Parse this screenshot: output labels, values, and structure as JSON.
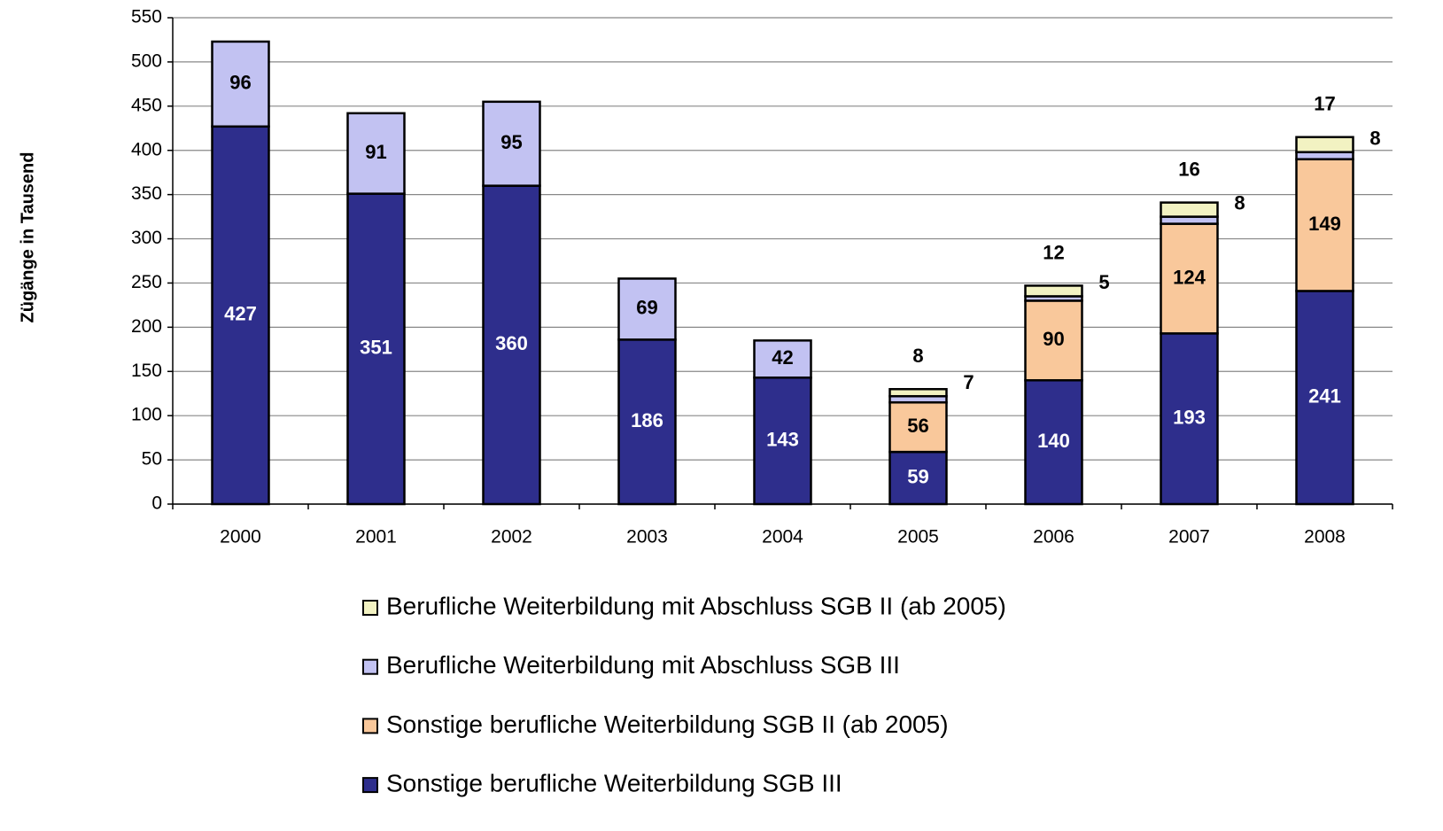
{
  "chart_data": {
    "type": "stacked_bar",
    "y_label": "Zügänge in Tausend",
    "categories": [
      "2000",
      "2001",
      "2002",
      "2003",
      "2004",
      "2005",
      "2006",
      "2007",
      "2008"
    ],
    "series": [
      {
        "name": "Sonstige berufliche Weiterbildung SGB III",
        "color": "#2e2e8c",
        "values": [
          427,
          351,
          360,
          186,
          143,
          59,
          140,
          193,
          241
        ]
      },
      {
        "name": "Sonstige berufliche Weiterbildung SGB II (ab 2005)",
        "color": "#f9c89b",
        "values": [
          null,
          null,
          null,
          null,
          null,
          56,
          90,
          124,
          149
        ]
      },
      {
        "name": "Berufliche Weiterbildung mit Abschluss SGB III",
        "color": "#c2c2f2",
        "values": [
          96,
          91,
          95,
          69,
          42,
          7,
          5,
          8,
          8
        ]
      },
      {
        "name": "Berufliche Weiterbildung mit Abschluss SGB II (ab 2005)",
        "color": "#f2f2c2",
        "values": [
          null,
          null,
          null,
          null,
          null,
          8,
          12,
          16,
          17
        ]
      }
    ],
    "ylim": [
      0,
      550
    ],
    "yticks": [
      0,
      50,
      100,
      150,
      200,
      250,
      300,
      350,
      400,
      450,
      500,
      550
    ],
    "grid": true
  }
}
